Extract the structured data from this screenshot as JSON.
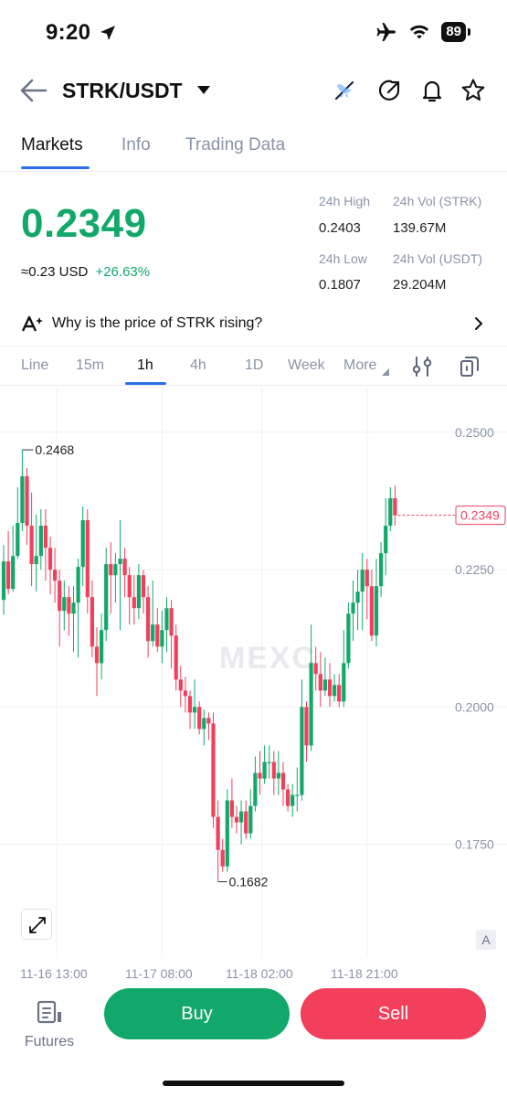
{
  "status": {
    "time": "9:20",
    "battery": "89"
  },
  "header": {
    "pair": "STRK/USDT"
  },
  "tabs": [
    {
      "label": "Markets",
      "active": true
    },
    {
      "label": "Info",
      "active": false
    },
    {
      "label": "Trading Data",
      "active": false
    }
  ],
  "ticker": {
    "price": "0.2349",
    "approx": "≈0.23",
    "currency": "USD",
    "change": "+26.63%",
    "high_label": "24h High",
    "high": "0.2403",
    "vol_strk_label": "24h Vol (STRK)",
    "vol_strk": "139.67M",
    "low_label": "24h Low",
    "low": "0.1807",
    "vol_usdt_label": "24h Vol (USDT)",
    "vol_usdt": "29.204M"
  },
  "insight": {
    "text": "Why is the price of STRK rising?"
  },
  "intervals": [
    {
      "label": "Line",
      "active": false
    },
    {
      "label": "15m",
      "active": false
    },
    {
      "label": "1h",
      "active": true
    },
    {
      "label": "4h",
      "active": false
    },
    {
      "label": "1D",
      "active": false
    },
    {
      "label": "Week",
      "active": false
    },
    {
      "label": "More",
      "active": false
    }
  ],
  "chart_data": {
    "type": "candlestick",
    "watermark": "MEXC",
    "y_ticks": [
      "0.2500",
      "0.2250",
      "0.2000",
      "0.1750"
    ],
    "ylim": [
      0.1618,
      0.2583
    ],
    "x_ticks": [
      "11-16 13:00",
      "11-17 08:00",
      "11-18 02:00",
      "11-18 21:00"
    ],
    "high_marker": "0.2468",
    "low_marker": "0.1682",
    "last_price": "0.2349",
    "scale_mode": "A",
    "colors": {
      "up": "#12a86a",
      "down": "#f23f5c",
      "grid": "#eef0f3"
    },
    "candles": [
      [
        0.2195,
        0.2265,
        0.2168,
        0.2295
      ],
      [
        0.2265,
        0.2215,
        0.2205,
        0.232
      ],
      [
        0.2215,
        0.2275,
        0.221,
        0.233
      ],
      [
        0.2275,
        0.2335,
        0.227,
        0.24
      ],
      [
        0.2335,
        0.242,
        0.232,
        0.2468
      ],
      [
        0.242,
        0.233,
        0.2295,
        0.2435
      ],
      [
        0.233,
        0.226,
        0.222,
        0.239
      ],
      [
        0.226,
        0.2275,
        0.221,
        0.235
      ],
      [
        0.2275,
        0.233,
        0.225,
        0.236
      ],
      [
        0.233,
        0.229,
        0.223,
        0.236
      ],
      [
        0.229,
        0.225,
        0.2205,
        0.231
      ],
      [
        0.225,
        0.223,
        0.219,
        0.229
      ],
      [
        0.223,
        0.2175,
        0.211,
        0.225
      ],
      [
        0.2175,
        0.22,
        0.214,
        0.223
      ],
      [
        0.22,
        0.217,
        0.213,
        0.222
      ],
      [
        0.217,
        0.219,
        0.21,
        0.222
      ],
      [
        0.219,
        0.2255,
        0.209,
        0.227
      ],
      [
        0.2255,
        0.234,
        0.222,
        0.2365
      ],
      [
        0.234,
        0.22,
        0.217,
        0.236
      ],
      [
        0.22,
        0.211,
        0.209,
        0.223
      ],
      [
        0.211,
        0.208,
        0.202,
        0.2145
      ],
      [
        0.208,
        0.214,
        0.205,
        0.217
      ],
      [
        0.214,
        0.226,
        0.212,
        0.229
      ],
      [
        0.226,
        0.224,
        0.217,
        0.23
      ],
      [
        0.224,
        0.226,
        0.219,
        0.228
      ],
      [
        0.226,
        0.227,
        0.214,
        0.234
      ],
      [
        0.227,
        0.224,
        0.22,
        0.229
      ],
      [
        0.224,
        0.22,
        0.215,
        0.2255
      ],
      [
        0.22,
        0.218,
        0.215,
        0.224
      ],
      [
        0.218,
        0.224,
        0.216,
        0.226
      ],
      [
        0.224,
        0.22,
        0.217,
        0.225
      ],
      [
        0.22,
        0.212,
        0.209,
        0.222
      ],
      [
        0.212,
        0.215,
        0.211,
        0.223
      ],
      [
        0.215,
        0.211,
        0.21,
        0.218
      ],
      [
        0.211,
        0.214,
        0.208,
        0.2175
      ],
      [
        0.214,
        0.218,
        0.21,
        0.22
      ],
      [
        0.218,
        0.213,
        0.207,
        0.2195
      ],
      [
        0.213,
        0.205,
        0.203,
        0.215
      ],
      [
        0.205,
        0.203,
        0.2,
        0.2075
      ],
      [
        0.203,
        0.202,
        0.199,
        0.2055
      ],
      [
        0.202,
        0.199,
        0.196,
        0.203
      ],
      [
        0.199,
        0.2,
        0.196,
        0.205
      ],
      [
        0.2,
        0.196,
        0.195,
        0.201
      ],
      [
        0.196,
        0.198,
        0.193,
        0.1995
      ],
      [
        0.198,
        0.197,
        0.194,
        0.199
      ],
      [
        0.197,
        0.18,
        0.178,
        0.199
      ],
      [
        0.18,
        0.174,
        0.1682,
        0.183
      ],
      [
        0.174,
        0.171,
        0.17,
        0.176
      ],
      [
        0.171,
        0.183,
        0.17,
        0.185
      ],
      [
        0.183,
        0.18,
        0.178,
        0.187
      ],
      [
        0.18,
        0.179,
        0.177,
        0.182
      ],
      [
        0.179,
        0.181,
        0.175,
        0.183
      ],
      [
        0.181,
        0.177,
        0.176,
        0.183
      ],
      [
        0.177,
        0.182,
        0.176,
        0.185
      ],
      [
        0.182,
        0.188,
        0.181,
        0.191
      ],
      [
        0.188,
        0.187,
        0.184,
        0.192
      ],
      [
        0.187,
        0.19,
        0.186,
        0.193
      ],
      [
        0.19,
        0.19,
        0.187,
        0.193
      ],
      [
        0.19,
        0.187,
        0.184,
        0.192
      ],
      [
        0.187,
        0.188,
        0.184,
        0.192
      ],
      [
        0.188,
        0.185,
        0.182,
        0.19
      ],
      [
        0.185,
        0.182,
        0.181,
        0.186
      ],
      [
        0.182,
        0.184,
        0.18,
        0.186
      ],
      [
        0.184,
        0.184,
        0.181,
        0.189
      ],
      [
        0.184,
        0.2,
        0.183,
        0.205
      ],
      [
        0.2,
        0.193,
        0.19,
        0.201
      ],
      [
        0.193,
        0.208,
        0.192,
        0.215
      ],
      [
        0.208,
        0.206,
        0.203,
        0.211
      ],
      [
        0.206,
        0.203,
        0.2,
        0.21
      ],
      [
        0.203,
        0.205,
        0.202,
        0.209
      ],
      [
        0.205,
        0.202,
        0.2,
        0.208
      ],
      [
        0.202,
        0.204,
        0.201,
        0.206
      ],
      [
        0.204,
        0.201,
        0.2,
        0.206
      ],
      [
        0.201,
        0.208,
        0.2,
        0.214
      ],
      [
        0.208,
        0.217,
        0.207,
        0.219
      ],
      [
        0.217,
        0.219,
        0.212,
        0.223
      ],
      [
        0.219,
        0.221,
        0.214,
        0.225
      ],
      [
        0.221,
        0.225,
        0.214,
        0.228
      ],
      [
        0.225,
        0.222,
        0.216,
        0.227
      ],
      [
        0.222,
        0.213,
        0.212,
        0.225
      ],
      [
        0.213,
        0.222,
        0.211,
        0.227
      ],
      [
        0.222,
        0.228,
        0.22,
        0.23
      ],
      [
        0.228,
        0.233,
        0.224,
        0.238
      ],
      [
        0.233,
        0.238,
        0.232,
        0.24
      ],
      [
        0.238,
        0.2349,
        0.233,
        0.2403
      ]
    ]
  },
  "bottom": {
    "futures_label": "Futures",
    "buy_label": "Buy",
    "sell_label": "Sell"
  }
}
